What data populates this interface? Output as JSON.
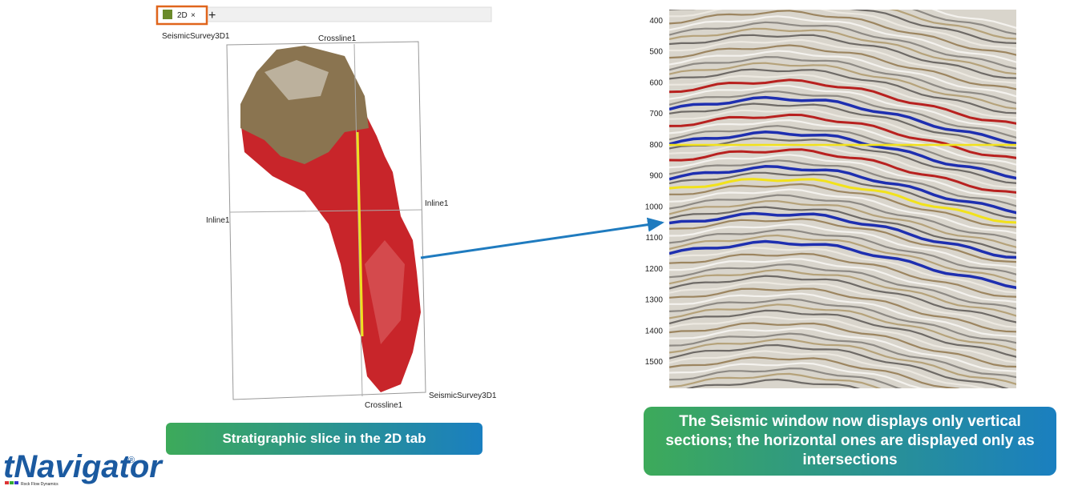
{
  "tab": {
    "label": "2D",
    "close": "×",
    "add": "+"
  },
  "map": {
    "survey_top": "SeismicSurvey3D1",
    "crossline_top": "Crossline1",
    "inline_right": "Inline1",
    "inline_left": "Inline1",
    "survey_bottom": "SeismicSurvey3D1",
    "crossline_bottom": "Crossline1"
  },
  "left_caption": "Stratigraphic slice in the 2D tab",
  "seismic": {
    "depth_ticks": [
      400,
      500,
      600,
      700,
      800,
      900,
      1000,
      1100,
      1200,
      1300,
      1400,
      1500
    ]
  },
  "right_caption": "The Seismic window now displays only vertical sections; the horizontal ones are displayed only as intersections",
  "logo": {
    "name": "tNavigator",
    "mark": "®",
    "company": "Rock Flow Dynamics"
  }
}
